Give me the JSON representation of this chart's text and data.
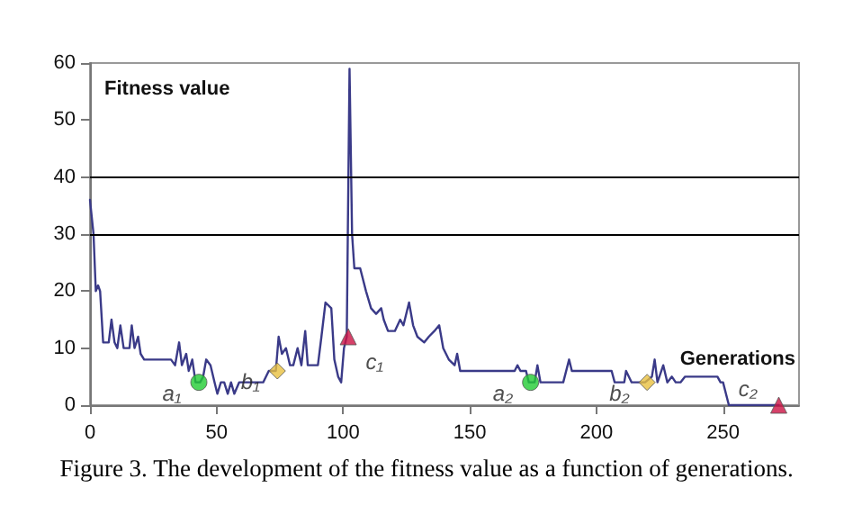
{
  "chart_data": {
    "type": "line",
    "title": "Figure 3. The development of the fitness value as a function of generations.",
    "xlabel": "Generations",
    "ylabel": "Fitness value",
    "xlim": [
      0,
      280
    ],
    "xticks": [
      0,
      50,
      100,
      150,
      200,
      250
    ],
    "ylim": [
      0,
      60
    ],
    "yticks": [
      0,
      10,
      20,
      30,
      40,
      50,
      60
    ],
    "grid": false,
    "ref_lines": [
      {
        "axis": "y",
        "value": 30,
        "color": "#000000"
      },
      {
        "axis": "y",
        "value": 40,
        "color": "#000000"
      }
    ],
    "series": [
      {
        "color": "#3a3a88",
        "marker": "none",
        "line_style": "solid",
        "x": [
          0,
          1.4,
          2.3,
          3.2,
          4,
          5.2,
          7.4,
          8.5,
          9.7,
          10.8,
          12,
          13.3,
          15.6,
          16.5,
          17.6,
          19,
          20,
          21.4,
          32,
          33.6,
          35.2,
          36.3,
          38,
          39,
          40.4,
          41.7,
          43.5,
          44.7,
          45.9,
          47.6,
          49.2,
          50.3,
          51.7,
          53,
          54.4,
          55.7,
          57,
          58.9,
          68.4,
          70.6,
          73.4,
          74.5,
          75.8,
          77.4,
          79,
          80.3,
          82,
          83.5,
          85,
          86,
          90,
          91.4,
          93,
          95.3,
          96.5,
          98,
          99.2,
          100.3,
          101.4,
          102.5,
          103.5,
          104.4,
          106.7,
          109,
          111,
          113,
          115,
          116,
          117.7,
          120.4,
          122.5,
          123.8,
          126,
          127.6,
          129.3,
          132,
          133.8,
          136,
          137.9,
          139.5,
          141.7,
          144,
          145,
          146.2,
          167.7,
          168.8,
          170,
          172.2,
          173.3,
          175.6,
          176.7,
          177.9,
          186.9,
          189.2,
          190.3,
          199.3,
          206,
          207.2,
          211,
          211.7,
          213.9,
          219.2,
          221.9,
          223,
          224.1,
          226.4,
          228,
          229.8,
          231.3,
          233.2,
          235,
          240,
          247.8,
          249,
          250,
          252.3,
          272
        ],
        "values": [
          36,
          30,
          20,
          21,
          20,
          11,
          11,
          15,
          11,
          10,
          14,
          10,
          10,
          14,
          10,
          12,
          9,
          8,
          8,
          7,
          11,
          7,
          9,
          6,
          8,
          4,
          4,
          5,
          8,
          7,
          4,
          2,
          4,
          4,
          2,
          4,
          2,
          4,
          4,
          6,
          6,
          12,
          9,
          10,
          7,
          7,
          10,
          7,
          13,
          7,
          7,
          12,
          18,
          17,
          8,
          5,
          4,
          10,
          12,
          59,
          30,
          24,
          24,
          20,
          17,
          16,
          17,
          15,
          13,
          13,
          15,
          14,
          18,
          14,
          12,
          11,
          12,
          13,
          14,
          10,
          8,
          7,
          9,
          6,
          6,
          7,
          6,
          6,
          4,
          4,
          7,
          4,
          4,
          8,
          6,
          6,
          6,
          4,
          4,
          6,
          4,
          4,
          5,
          8,
          4,
          7,
          4,
          5,
          4,
          4,
          5,
          5,
          5,
          4,
          4,
          0,
          0
        ]
      },
      {
        "type": "scatter",
        "color": "#22cc33",
        "marker": "circle",
        "x": [
          43,
          174
        ],
        "values": [
          4,
          4
        ]
      },
      {
        "type": "scatter",
        "color": "#e8c040",
        "marker": "diamond",
        "x": [
          74,
          220
        ],
        "values": [
          6,
          4
        ]
      },
      {
        "type": "scatter",
        "color": "#cc1144",
        "marker": "triangle",
        "x": [
          102,
          272
        ],
        "values": [
          12,
          0
        ]
      }
    ],
    "annotations": [
      "a₁",
      "a₂",
      "b₁",
      "b₂",
      "c₁",
      "c₂"
    ]
  }
}
